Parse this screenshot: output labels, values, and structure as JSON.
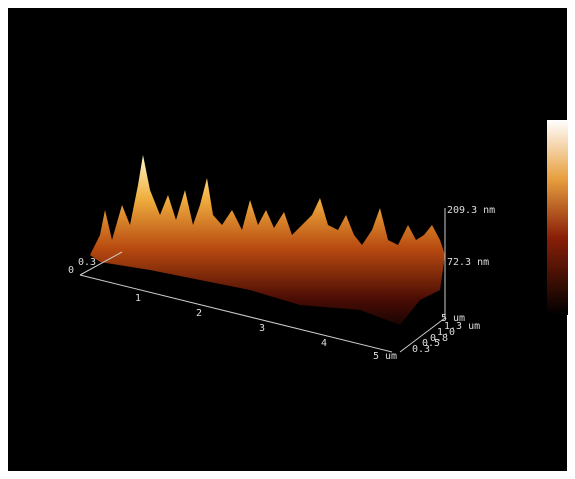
{
  "x_axis": {
    "labels": [
      "1",
      "2",
      "3",
      "4",
      "5 um"
    ]
  },
  "origin_labels": [
    "0",
    "0.3"
  ],
  "z_axis": {
    "labels": [
      "209.3 nm",
      "72.3 nm"
    ]
  },
  "y_axis": {
    "labels": [
      "5 um",
      "1.3 um",
      "1.0",
      "0.8",
      "0.5",
      "0.3"
    ]
  }
}
